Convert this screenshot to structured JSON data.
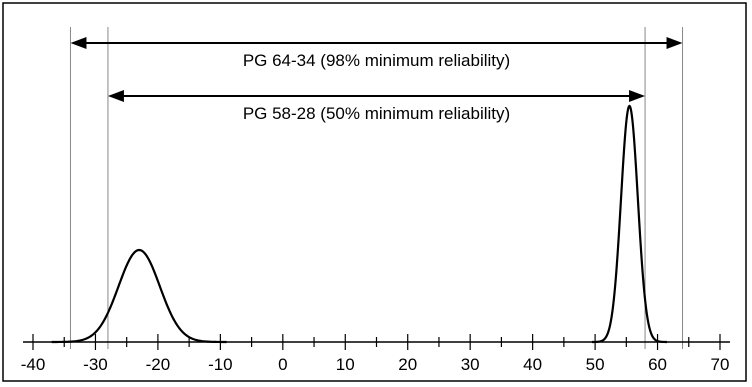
{
  "diagram": {
    "arrows": [
      {
        "label": "PG 64-34 (98% minimum reliability)",
        "from": -34,
        "to": 64
      },
      {
        "label": "PG 58-28 (50% minimum reliability)",
        "from": -28,
        "to": 58
      }
    ],
    "curves": [
      {
        "name": "low-temperature-distribution",
        "mean": -23,
        "sd": 3.3,
        "range": [
          -37,
          -9
        ]
      },
      {
        "name": "high-temperature-distribution",
        "mean": 55.5,
        "sd": 1.35,
        "range": [
          49.5,
          61.5
        ]
      }
    ],
    "axis": {
      "min": -40,
      "max": 70,
      "major_ticks": [
        -40,
        -30,
        -20,
        -10,
        0,
        10,
        20,
        30,
        40,
        50,
        60,
        70
      ],
      "tick_labels": [
        "-40",
        "-30",
        "-20",
        "-10",
        "0",
        "10",
        "20",
        "30",
        "40",
        "50",
        "60",
        "70"
      ],
      "minor_step": 5
    },
    "colors": {
      "line": "#000000",
      "guide": "#888888",
      "frame": "#000000"
    }
  }
}
